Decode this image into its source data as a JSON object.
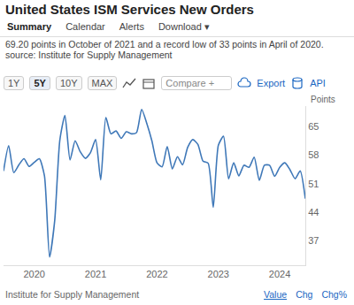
{
  "chart_data": {
    "type": "line",
    "title": "United States ISM Services New Orders",
    "ylabel": "Points",
    "categories": [
      null,
      null,
      null,
      null,
      null,
      null,
      "2020",
      null,
      null,
      null,
      null,
      null,
      null,
      null,
      null,
      null,
      null,
      null,
      "2021",
      null,
      null,
      null,
      null,
      null,
      null,
      null,
      null,
      null,
      null,
      null,
      "2022",
      null,
      null,
      null,
      null,
      null,
      null,
      null,
      null,
      null,
      null,
      null,
      "2023",
      null,
      null,
      null,
      null,
      null,
      null,
      null,
      null,
      null,
      null,
      null,
      "2024",
      null,
      null,
      null,
      null,
      null
    ],
    "values": [
      54.1,
      60.3,
      53.7,
      55.6,
      57.1,
      55.2,
      56.2,
      57.1,
      52.9,
      33,
      41.9,
      61.6,
      67.7,
      56.8,
      61.5,
      58.8,
      57.2,
      58.6,
      61.8,
      51.9,
      67.2,
      63.2,
      63.9,
      62.1,
      63.7,
      63.2,
      63.5,
      69.2,
      65.8,
      61.5,
      56.1,
      55.1,
      60.1,
      54.6,
      57.6,
      55.6,
      59.9,
      61.8,
      60.6,
      56.5,
      56.0,
      45.2,
      60.4,
      62.6,
      52.2,
      56.1,
      52.9,
      55.5,
      55.0,
      57.5,
      51.8,
      55.5,
      55.5,
      52.8,
      55.0,
      56.1,
      54.4,
      52.2,
      54.1,
      47.3
    ],
    "color": "#3f78b8",
    "ylim": [
      31,
      70
    ],
    "yticks": [
      37,
      44,
      51,
      58,
      65
    ],
    "grid": false
  },
  "page": {
    "tabs": [
      "Summary",
      "Calendar",
      "Alerts",
      "Download ▾"
    ],
    "summary": "69.20 points in October of 2021 and a record low of 33 points in April of 2020. source: Institute for Supply Management",
    "ranges": [
      "1Y",
      "5Y",
      "10Y",
      "MAX"
    ],
    "selected_range": "5Y",
    "compare": "Compare +",
    "export": "Export",
    "api": "API",
    "footer_source": "Institute for Supply Management",
    "views": [
      "Value",
      "Chg",
      "Chg%"
    ],
    "selected_view": "Value"
  }
}
